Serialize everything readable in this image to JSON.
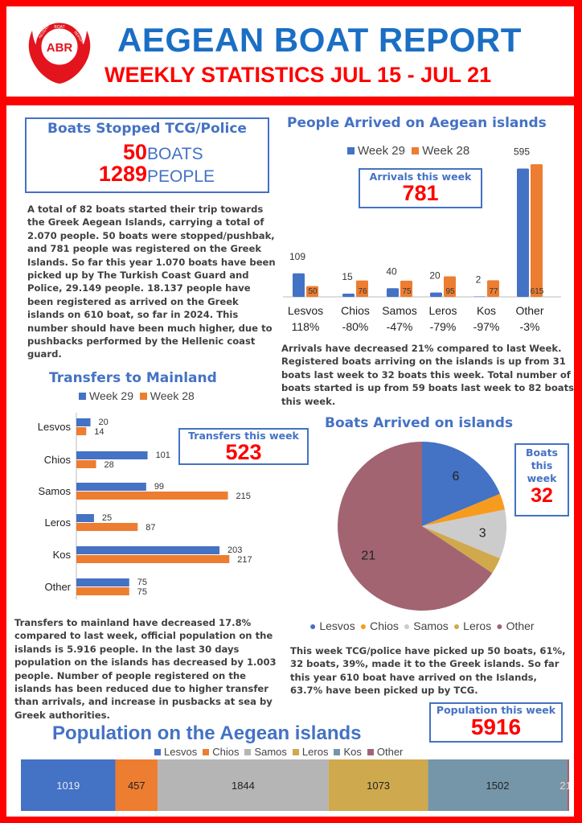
{
  "header": {
    "logo_text": "ABR",
    "logo_ring_left": "AEGEAN",
    "logo_ring_top": "BOAT",
    "logo_ring_right": "REPORT",
    "title": "AEGEAN BOAT REPORT",
    "subtitle": "WEEKLY STATISTICS JUL 15 - JUL 21"
  },
  "stopped": {
    "title": "Boats Stopped TCG/Police",
    "boats_value": "50",
    "boats_label": "BOATS",
    "people_value": "1289",
    "people_label": "PEOPLE"
  },
  "paragraphs": {
    "summary": "A total of 82 boats started their trip towards the Greek Aegean Islands, carrying a total of 2.070 people. 50 boats were stopped/pushbak, and 781 people was registered on the Greek Islands. So far this year 1.070 boats have been picked up by The Turkish Coast Guard and Police, 29.149 people. 18.137 people have been registered as arrived on the Greek islands on 610 boat, so far in 2024. This number should have been much higher, due to pushbacks performed by the Hellenic coast guard.",
    "arrivals": "Arrivals have decreased 21% compared to last Week. Registered boats arriving on the islands is up from 31 boats last week to 32 boats this week. Total number of boats started is up from 59 boats last week to 82 boats this week.",
    "transfers": "Transfers to mainland have decreased 17.8% compared to last week, official population on the islands is 5.916  people. In the last 30 days population on the islands has decreased by 1.003 people. Number of people registered on the islands has been reduced due to higher transfer than arrivals, and increase in pusbacks at sea by Greek authorities.",
    "boats": "This week TCG/police have picked up 50 boats, 61%, 32 boats, 39%, made it to the Greek islands. So far this year 610 boat have arrived on the Islands, 63.7% have been picked up by TCG."
  },
  "callouts": {
    "arrivals": {
      "label": "Arrivals this week",
      "value": "781"
    },
    "transfers": {
      "label": "Transfers this week",
      "value": "523"
    },
    "boats": {
      "label_1": "Boats",
      "label_2": "this",
      "label_3": "week",
      "value": "32"
    },
    "population": {
      "label": "Population this week",
      "value": "5916"
    }
  },
  "colors": {
    "week29": "#4472c4",
    "week28": "#ed7d31"
  },
  "chart_data": [
    {
      "id": "arrivals",
      "type": "bar",
      "title": "People Arrived on Aegean islands",
      "categories": [
        "Lesvos",
        "Chios",
        "Samos",
        "Leros",
        "Kos",
        "Other"
      ],
      "change": [
        "118%",
        "-80%",
        "-47%",
        "-79%",
        "-97%",
        "-3%"
      ],
      "series": [
        {
          "name": "Week 29",
          "values": [
            109,
            15,
            40,
            20,
            2,
            595
          ]
        },
        {
          "name": "Week 28",
          "values": [
            50,
            76,
            75,
            95,
            77,
            615
          ]
        }
      ],
      "ylim": [
        0,
        640
      ]
    },
    {
      "id": "transfers",
      "type": "bar",
      "orientation": "horizontal",
      "title": "Transfers to Mainland",
      "categories": [
        "Lesvos",
        "Chios",
        "Samos",
        "Leros",
        "Kos",
        "Other"
      ],
      "series": [
        {
          "name": "Week 29",
          "values": [
            20,
            101,
            99,
            25,
            203,
            75
          ]
        },
        {
          "name": "Week 28",
          "values": [
            14,
            28,
            215,
            87,
            217,
            75
          ]
        }
      ],
      "xlim": [
        0,
        230
      ]
    },
    {
      "id": "boats",
      "type": "pie",
      "title": "Boats Arrived on islands",
      "labels": [
        "Lesvos",
        "Chios",
        "Samos",
        "Leros",
        "Kos",
        "Other"
      ],
      "values": [
        6,
        1,
        3,
        1,
        0,
        21
      ],
      "shown_labels": [
        "6",
        "",
        "3",
        "",
        "",
        "21"
      ],
      "legend": [
        "Lesvos",
        "Chios",
        "Samos",
        "Leros",
        "Other"
      ],
      "colors": [
        "#4472c4",
        "#f79b1f",
        "#cccccc",
        "#d0a94c",
        "#7496a8",
        "#a26471"
      ]
    },
    {
      "id": "population",
      "type": "bar",
      "orientation": "stacked-horizontal",
      "title": "Population on the Aegean islands",
      "labels": [
        "Lesvos",
        "Chios",
        "Samos",
        "Leros",
        "Kos",
        "Other"
      ],
      "values": [
        1019,
        457,
        1844,
        1073,
        1502,
        21
      ],
      "colors": [
        "#4472c4",
        "#ed7d31",
        "#b5b5b5",
        "#cfa94d",
        "#7496a8",
        "#a26471"
      ],
      "text_colors": [
        "#e8e8f0",
        "#222",
        "#222",
        "#222",
        "#222",
        "#f4d0d8"
      ]
    }
  ]
}
